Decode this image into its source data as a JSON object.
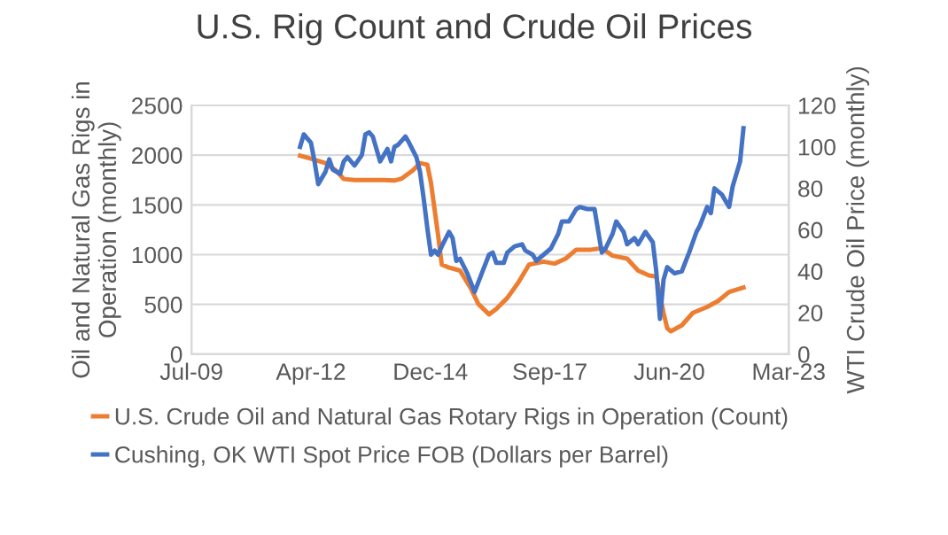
{
  "chart_data": {
    "type": "line",
    "title": "U.S. Rig Count and Crude Oil Prices",
    "ylabel": "Oil and Natural Gas Rigs in\nOperation (monthly)",
    "y2label": "WTI Crude Oil Price (monthly)",
    "xlim": [
      "2009-07-06",
      "2023-03-15"
    ],
    "xticks": [
      {
        "value": "2009-07-06",
        "label": "Jul-09"
      },
      {
        "value": "2012-04-01",
        "label": "Apr-12"
      },
      {
        "value": "2014-12-27",
        "label": "Dec-14"
      },
      {
        "value": "2017-09-22",
        "label": "Sep-17"
      },
      {
        "value": "2020-06-18",
        "label": "Jun-20"
      },
      {
        "value": "2023-03-15",
        "label": "Mar-23"
      }
    ],
    "ylim": [
      0,
      2500
    ],
    "yticks": [
      0,
      500,
      1000,
      1500,
      2000,
      2500
    ],
    "y2lim": [
      0,
      120
    ],
    "y2ticks": [
      0,
      20,
      40,
      60,
      80,
      100,
      120
    ],
    "grid": "y",
    "legend": "bottom",
    "marker": "none",
    "line_style": "solid",
    "series": [
      {
        "name": "U.S. Crude Oil and Natural Gas Rotary Rigs in Operation (Count)",
        "color": "#ed7d31",
        "x": [
          "2012-01",
          "2012-04",
          "2012-08",
          "2012-11",
          "2013-01",
          "2013-04",
          "2013-09",
          "2013-12",
          "2014-03",
          "2014-05",
          "2014-08",
          "2014-10",
          "2014-12",
          "2015-01",
          "2015-03",
          "2015-04",
          "2015-06",
          "2015-09",
          "2015-12",
          "2016-02",
          "2016-05",
          "2016-07",
          "2016-10",
          "2017-01",
          "2017-04",
          "2017-08",
          "2017-11",
          "2018-02",
          "2018-05",
          "2018-09",
          "2018-12",
          "2019-03",
          "2019-07",
          "2019-10",
          "2020-01",
          "2020-03",
          "2020-05",
          "2020-06",
          "2020-07",
          "2020-10",
          "2021-01",
          "2021-05",
          "2021-08",
          "2021-11",
          "2022-03"
        ],
        "values": [
          1995,
          1965,
          1920,
          1840,
          1760,
          1750,
          1750,
          1750,
          1745,
          1765,
          1845,
          1920,
          1905,
          1720,
          1200,
          900,
          870,
          840,
          660,
          505,
          400,
          455,
          565,
          720,
          900,
          930,
          910,
          960,
          1050,
          1050,
          1065,
          990,
          960,
          840,
          790,
          780,
          415,
          260,
          230,
          290,
          415,
          475,
          535,
          625,
          670
        ]
      },
      {
        "name": "Cushing, OK WTI Spot Price FOB (Dollars per Barrel)",
        "color": "#4472c4",
        "axis": "y2",
        "x": [
          "2012-01",
          "2012-02",
          "2012-04",
          "2012-05",
          "2012-06",
          "2012-08",
          "2012-09",
          "2012-10",
          "2012-12",
          "2013-01",
          "2013-02",
          "2013-04",
          "2013-06",
          "2013-07",
          "2013-08",
          "2013-09",
          "2013-11",
          "2014-01",
          "2014-02",
          "2014-03",
          "2014-04",
          "2014-06",
          "2014-07",
          "2014-09",
          "2014-10",
          "2014-11",
          "2014-12",
          "2015-01",
          "2015-02",
          "2015-03",
          "2015-04",
          "2015-06",
          "2015-07",
          "2015-08",
          "2015-09",
          "2015-11",
          "2016-01",
          "2016-03",
          "2016-05",
          "2016-06",
          "2016-07",
          "2016-09",
          "2016-10",
          "2016-12",
          "2017-02",
          "2017-03",
          "2017-05",
          "2017-06",
          "2017-08",
          "2017-10",
          "2017-12",
          "2018-01",
          "2018-03",
          "2018-05",
          "2018-06",
          "2018-08",
          "2018-10",
          "2018-12",
          "2019-01",
          "2019-03",
          "2019-04",
          "2019-06",
          "2019-07",
          "2019-09",
          "2019-10",
          "2019-12",
          "2020-02",
          "2020-03",
          "2020-04",
          "2020-05",
          "2020-06",
          "2020-08",
          "2020-10",
          "2020-12",
          "2021-02",
          "2021-03",
          "2021-05",
          "2021-06",
          "2021-07",
          "2021-09",
          "2021-11",
          "2021-12",
          "2022-02",
          "2022-03"
        ],
        "values": [
          100,
          106,
          102,
          93,
          82,
          88,
          94,
          89,
          87,
          93,
          95,
          91,
          96,
          106,
          107,
          105,
          93,
          99,
          93,
          100,
          101,
          105,
          102,
          95,
          88,
          75,
          61,
          48,
          50,
          48,
          52,
          59,
          56,
          45,
          46,
          39,
          30,
          39,
          48,
          49,
          44,
          44,
          49,
          52,
          53,
          50,
          48,
          45,
          48,
          51,
          58,
          64,
          64,
          70,
          71,
          70,
          70,
          49,
          51,
          58,
          64,
          59,
          53,
          56,
          53,
          59,
          54,
          40,
          17,
          36,
          42,
          39,
          40,
          49,
          59,
          62,
          71,
          68,
          80,
          77,
          71,
          81,
          93,
          109
        ]
      }
    ]
  }
}
